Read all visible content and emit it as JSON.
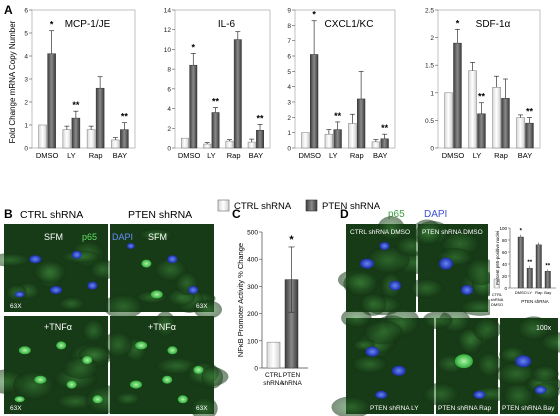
{
  "panels": {
    "A": "A",
    "B": "B",
    "C": "C",
    "D": "D"
  },
  "chart_data": [
    {
      "type": "bar",
      "title": "MCP-1/JE",
      "ylabel": "Fold Change mRNA Copy Number",
      "categories": [
        "DMSO",
        "LY",
        "Rap",
        "BAY"
      ],
      "ylim": [
        0,
        6
      ],
      "yticks": [
        0,
        1,
        2,
        3,
        4,
        5,
        6
      ],
      "series": [
        {
          "name": "CTRL shRNA",
          "values": [
            1.0,
            0.8,
            0.8,
            0.35
          ],
          "err": [
            0.0,
            0.15,
            0.15,
            0.1
          ]
        },
        {
          "name": "PTEN shRNA",
          "values": [
            4.1,
            1.3,
            2.6,
            0.8
          ],
          "err": [
            1.0,
            0.3,
            0.5,
            0.3
          ]
        }
      ],
      "annotations": [
        "*",
        "**",
        "",
        "**"
      ]
    },
    {
      "type": "bar",
      "title": "IL-6",
      "categories": [
        "DMSO",
        "LY",
        "Rap",
        "BAY"
      ],
      "ylim": [
        0,
        14
      ],
      "yticks": [
        0,
        2,
        4,
        6,
        8,
        10,
        12,
        14
      ],
      "series": [
        {
          "name": "CTRL shRNA",
          "values": [
            1.0,
            0.4,
            0.7,
            0.6
          ],
          "err": [
            0.0,
            0.15,
            0.15,
            0.3
          ]
        },
        {
          "name": "PTEN shRNA",
          "values": [
            8.4,
            3.6,
            11.0,
            1.8
          ],
          "err": [
            1.2,
            0.5,
            0.8,
            0.6
          ]
        }
      ],
      "annotations": [
        "*",
        "**",
        "",
        "**"
      ]
    },
    {
      "type": "bar",
      "title": "CXCL1/KC",
      "categories": [
        "DMSO",
        "LY",
        "Rap",
        "BAY"
      ],
      "ylim": [
        0,
        9
      ],
      "yticks": [
        0,
        1,
        2,
        3,
        4,
        5,
        6,
        7,
        8,
        9
      ],
      "series": [
        {
          "name": "CTRL shRNA",
          "values": [
            1.0,
            0.9,
            1.6,
            0.4
          ],
          "err": [
            0.0,
            0.3,
            0.6,
            0.15
          ]
        },
        {
          "name": "PTEN shRNA",
          "values": [
            6.1,
            1.2,
            3.2,
            0.6
          ],
          "err": [
            2.2,
            0.5,
            1.8,
            0.3
          ]
        }
      ],
      "annotations": [
        "*",
        "**",
        "",
        "**"
      ]
    },
    {
      "type": "bar",
      "title": "SDF-1α",
      "categories": [
        "DMSO",
        "LY",
        "Rap",
        "BAY"
      ],
      "ylim": [
        0,
        2.5
      ],
      "yticks": [
        0,
        0.5,
        1,
        1.5,
        2,
        2.5
      ],
      "series": [
        {
          "name": "CTRL shRNA",
          "values": [
            1.0,
            1.4,
            1.1,
            0.55
          ],
          "err": [
            0.0,
            0.15,
            0.2,
            0.05
          ]
        },
        {
          "name": "PTEN shRNA",
          "values": [
            1.9,
            0.62,
            0.9,
            0.45
          ],
          "err": [
            0.25,
            0.2,
            0.35,
            0.1
          ]
        }
      ],
      "annotations": [
        "*",
        "**",
        "",
        "**"
      ]
    },
    {
      "type": "bar",
      "ylabel": "NFκB Promoter Activity % Change",
      "categories": [
        "CTRL\nshRNA",
        "PTEN\nshRNA"
      ],
      "ylim": [
        0,
        500
      ],
      "yticks": [
        0,
        100,
        200,
        300,
        400,
        500
      ],
      "values": [
        95,
        325
      ],
      "err": [
        0,
        120
      ],
      "annotations": [
        "",
        "*"
      ]
    },
    {
      "type": "bar",
      "ylabel": "Percent p65-positive nuclei",
      "categories": [
        "CTRL shRNA DMSO",
        "DMSO",
        "LY",
        "Rap",
        "Bay"
      ],
      "group_label": "PTEN shRNA",
      "ylim": [
        0,
        100
      ],
      "yticks": [
        0,
        20,
        40,
        60,
        80,
        100
      ],
      "values": [
        15,
        85,
        33,
        72,
        28
      ],
      "err": [
        2,
        4,
        4,
        4,
        3
      ],
      "annotations": [
        "",
        "*",
        "**",
        "",
        "**"
      ]
    }
  ],
  "legend": {
    "ctrl": "CTRL shRNA",
    "pten": "PTEN shRNA"
  },
  "panel_b": {
    "col_ctrl": "CTRL shRNA",
    "col_pten": "PTEN shRNA",
    "sfm1": "SFM",
    "sfm2": "SFM",
    "p65": "p65",
    "dapi": "DAPI",
    "tnf1": "+TNFα",
    "tnf2": "+TNFα",
    "mag1": "63X",
    "mag2": "63X",
    "mag3": "63X",
    "mag4": "63X"
  },
  "panel_d": {
    "p65": "p65",
    "dapi": "DAPI",
    "img1": "CTRL shRNA DMSO",
    "img2": "PTEN shRNA DMSO",
    "img3": "PTEN shRNA LY",
    "img4": "PTEN shRNA Rap",
    "img5": "PTEN shRNA Bay",
    "mag": "100x"
  },
  "colors": {
    "ctrl_fill": "#ffffff",
    "pten_fill": "#6b6b6b",
    "micro_bg": "#2a5a2a",
    "p65_green": "#4fd15a",
    "dapi_blue": "#4466ff"
  }
}
